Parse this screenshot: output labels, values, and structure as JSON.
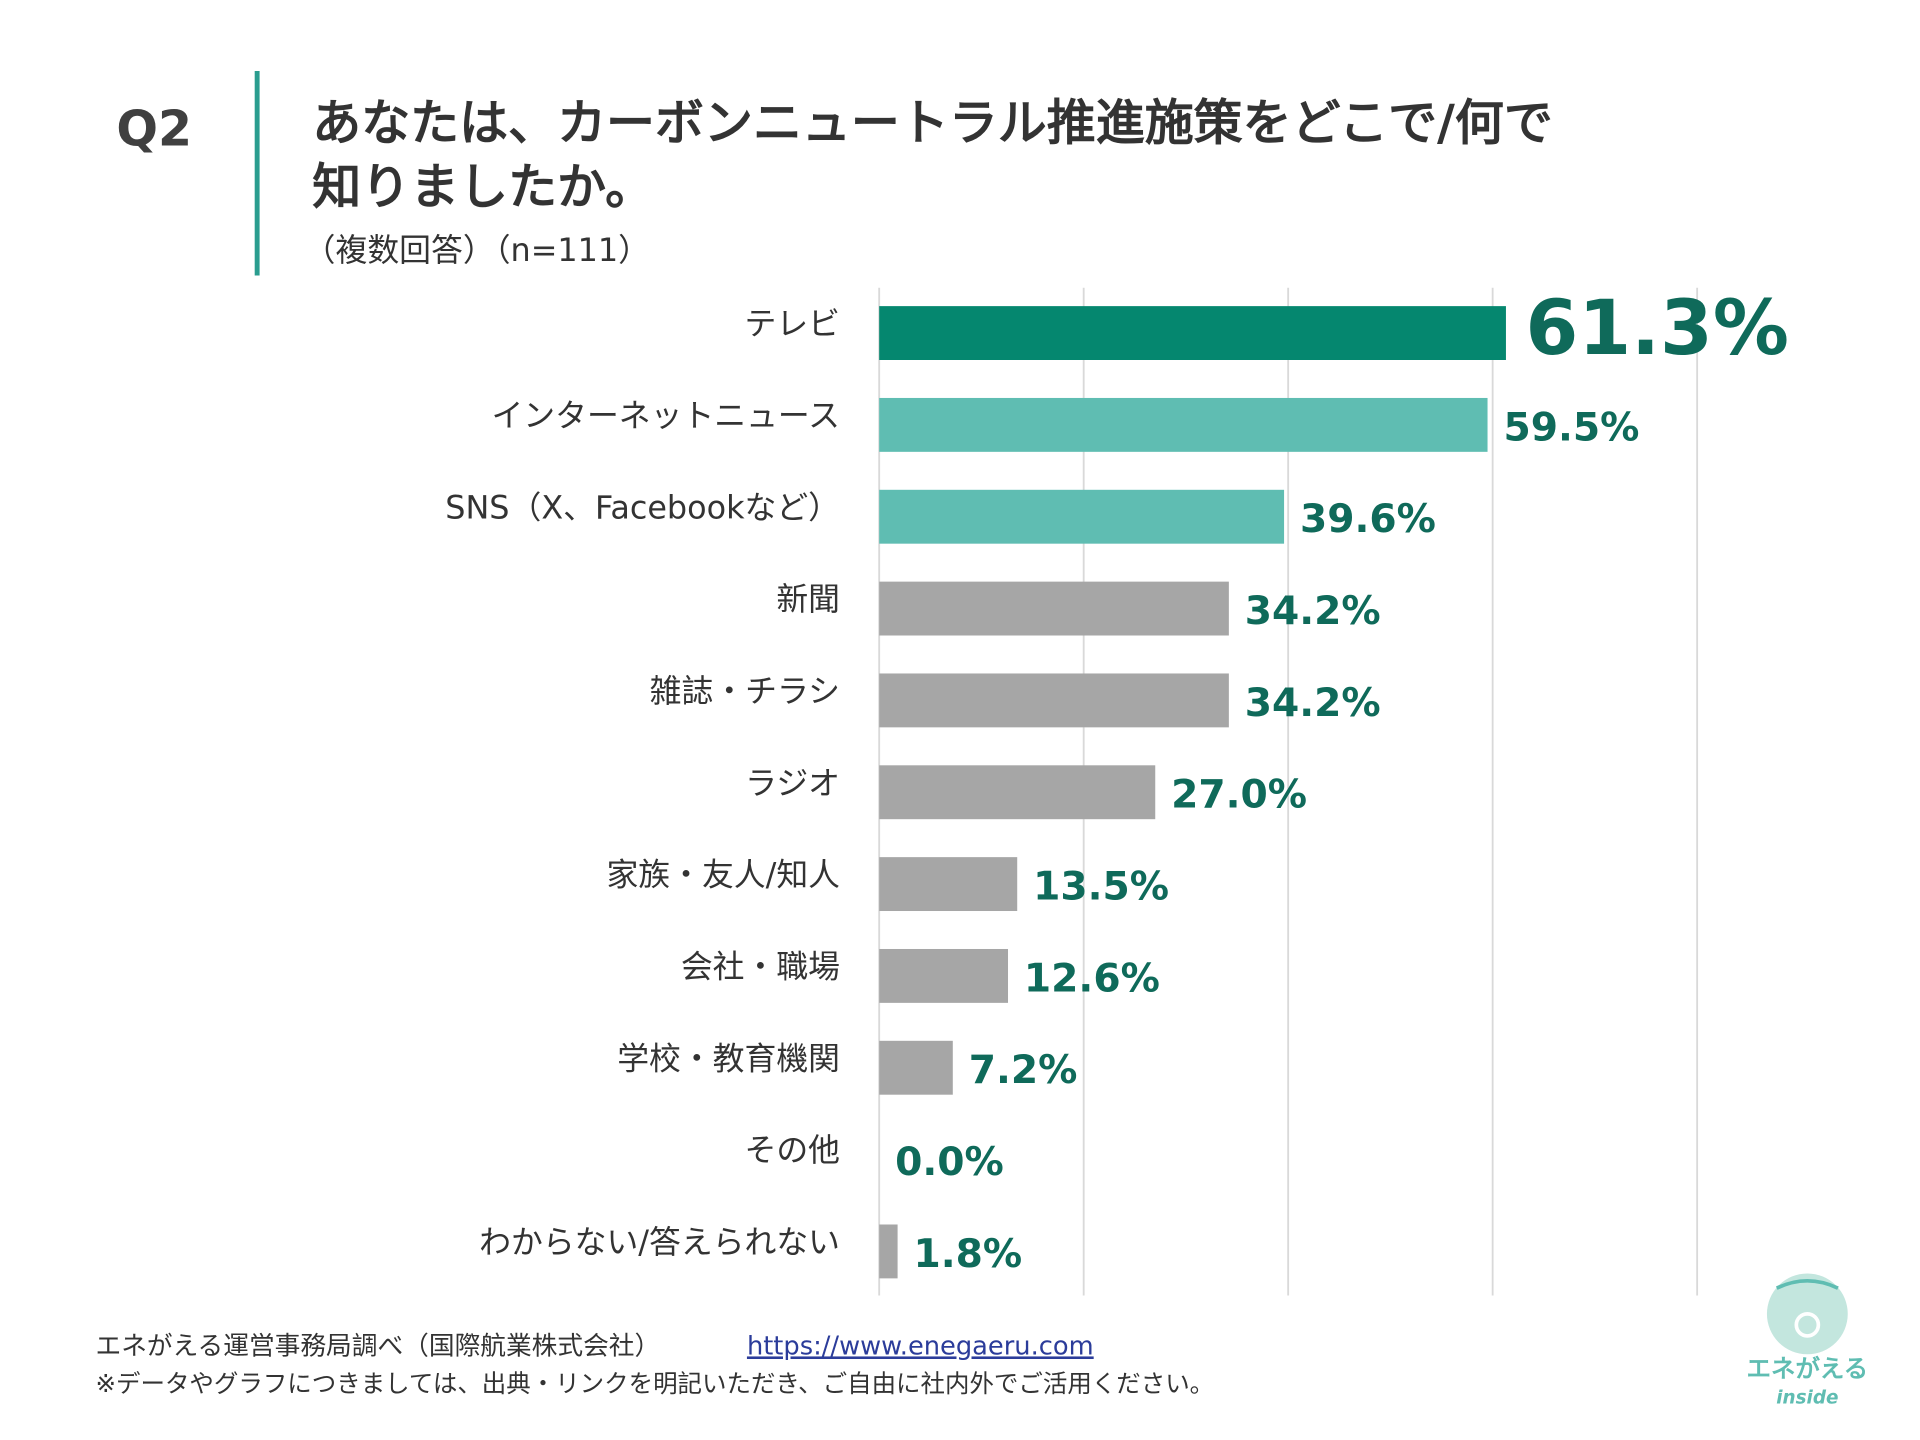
{
  "chart_data": {
    "type": "barh",
    "question": "Q2",
    "title": [
      "あなたは、カーボンニュートラル推進施策をどこで/何で",
      "知りましたか。"
    ],
    "subtitle": "（複数回答）（n=111）",
    "categories": [
      "テレビ",
      "インターネットニュース",
      "SNS（X、Facebookなど）",
      "新聞",
      "雑誌・チラシ",
      "ラジオ",
      "家族・友人/知人",
      "会社・職場",
      "学校・教育機関",
      "その他",
      "わからない/答えられない"
    ],
    "values": [
      61.3,
      59.5,
      39.6,
      34.2,
      34.2,
      27.0,
      13.5,
      12.6,
      7.2,
      0.0,
      1.8
    ],
    "value_labels": [
      "61.3%",
      "59.5%",
      "39.6%",
      "34.2%",
      "34.2%",
      "27.0%",
      "13.5%",
      "12.6%",
      "7.2%",
      "0.0%",
      "1.8%"
    ],
    "colors": [
      "#05876f",
      "#5fbdb2",
      "#5fbdb2",
      "#a6a6a6",
      "#a6a6a6",
      "#a6a6a6",
      "#a6a6a6",
      "#a6a6a6",
      "#a6a6a6",
      "#a6a6a6",
      "#a6a6a6"
    ],
    "label_color": "#0f6a5a",
    "xlim": [
      0,
      80
    ],
    "xticks": [
      0,
      20,
      40,
      60,
      80
    ],
    "grid": true,
    "source": "エネがえる運営事務局調べ（国際航業株式会社）",
    "source_url": "https://www.enegaeru.com",
    "note": "※データやグラフにつきましては、出典・リンクを明記いただき、ご自由に社内外でご活用ください。",
    "logo_text": "エネがえる",
    "logo_subtext": "inside"
  }
}
